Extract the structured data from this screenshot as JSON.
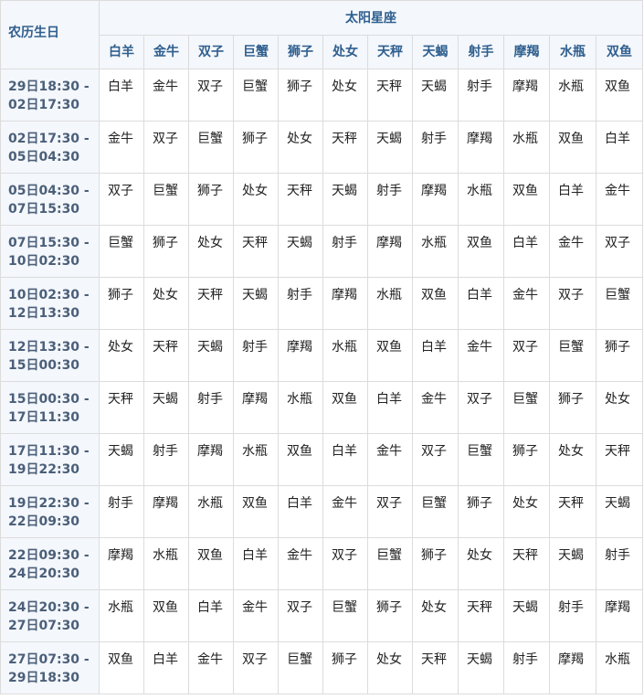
{
  "table": {
    "corner_label": "农历生日",
    "group_label": "太阳星座",
    "columns": [
      "白羊",
      "金牛",
      "双子",
      "巨蟹",
      "狮子",
      "处女",
      "天秤",
      "天蝎",
      "射手",
      "摩羯",
      "水瓶",
      "双鱼"
    ],
    "rows": [
      {
        "from": "29日18:30 -",
        "to": "02日17:30",
        "cells": [
          "白羊",
          "金牛",
          "双子",
          "巨蟹",
          "狮子",
          "处女",
          "天秤",
          "天蝎",
          "射手",
          "摩羯",
          "水瓶",
          "双鱼"
        ]
      },
      {
        "from": "02日17:30 -",
        "to": "05日04:30",
        "cells": [
          "金牛",
          "双子",
          "巨蟹",
          "狮子",
          "处女",
          "天秤",
          "天蝎",
          "射手",
          "摩羯",
          "水瓶",
          "双鱼",
          "白羊"
        ]
      },
      {
        "from": "05日04:30 -",
        "to": "07日15:30",
        "cells": [
          "双子",
          "巨蟹",
          "狮子",
          "处女",
          "天秤",
          "天蝎",
          "射手",
          "摩羯",
          "水瓶",
          "双鱼",
          "白羊",
          "金牛"
        ]
      },
      {
        "from": "07日15:30 -",
        "to": "10日02:30",
        "cells": [
          "巨蟹",
          "狮子",
          "处女",
          "天秤",
          "天蝎",
          "射手",
          "摩羯",
          "水瓶",
          "双鱼",
          "白羊",
          "金牛",
          "双子"
        ]
      },
      {
        "from": "10日02:30 -",
        "to": "12日13:30",
        "cells": [
          "狮子",
          "处女",
          "天秤",
          "天蝎",
          "射手",
          "摩羯",
          "水瓶",
          "双鱼",
          "白羊",
          "金牛",
          "双子",
          "巨蟹"
        ]
      },
      {
        "from": "12日13:30 -",
        "to": "15日00:30",
        "cells": [
          "处女",
          "天秤",
          "天蝎",
          "射手",
          "摩羯",
          "水瓶",
          "双鱼",
          "白羊",
          "金牛",
          "双子",
          "巨蟹",
          "狮子"
        ]
      },
      {
        "from": "15日00:30 -",
        "to": "17日11:30",
        "cells": [
          "天秤",
          "天蝎",
          "射手",
          "摩羯",
          "水瓶",
          "双鱼",
          "白羊",
          "金牛",
          "双子",
          "巨蟹",
          "狮子",
          "处女"
        ]
      },
      {
        "from": "17日11:30 -",
        "to": "19日22:30",
        "cells": [
          "天蝎",
          "射手",
          "摩羯",
          "水瓶",
          "双鱼",
          "白羊",
          "金牛",
          "双子",
          "巨蟹",
          "狮子",
          "处女",
          "天秤"
        ]
      },
      {
        "from": "19日22:30 -",
        "to": "22日09:30",
        "cells": [
          "射手",
          "摩羯",
          "水瓶",
          "双鱼",
          "白羊",
          "金牛",
          "双子",
          "巨蟹",
          "狮子",
          "处女",
          "天秤",
          "天蝎"
        ]
      },
      {
        "from": "22日09:30 -",
        "to": "24日20:30",
        "cells": [
          "摩羯",
          "水瓶",
          "双鱼",
          "白羊",
          "金牛",
          "双子",
          "巨蟹",
          "狮子",
          "处女",
          "天秤",
          "天蝎",
          "射手"
        ]
      },
      {
        "from": "24日20:30 -",
        "to": "27日07:30",
        "cells": [
          "水瓶",
          "双鱼",
          "白羊",
          "金牛",
          "双子",
          "巨蟹",
          "狮子",
          "处女",
          "天秤",
          "天蝎",
          "射手",
          "摩羯"
        ]
      },
      {
        "from": "27日07:30 -",
        "to": "29日18:30",
        "cells": [
          "双鱼",
          "白羊",
          "金牛",
          "双子",
          "巨蟹",
          "狮子",
          "处女",
          "天秤",
          "天蝎",
          "射手",
          "摩羯",
          "水瓶"
        ]
      }
    ]
  }
}
